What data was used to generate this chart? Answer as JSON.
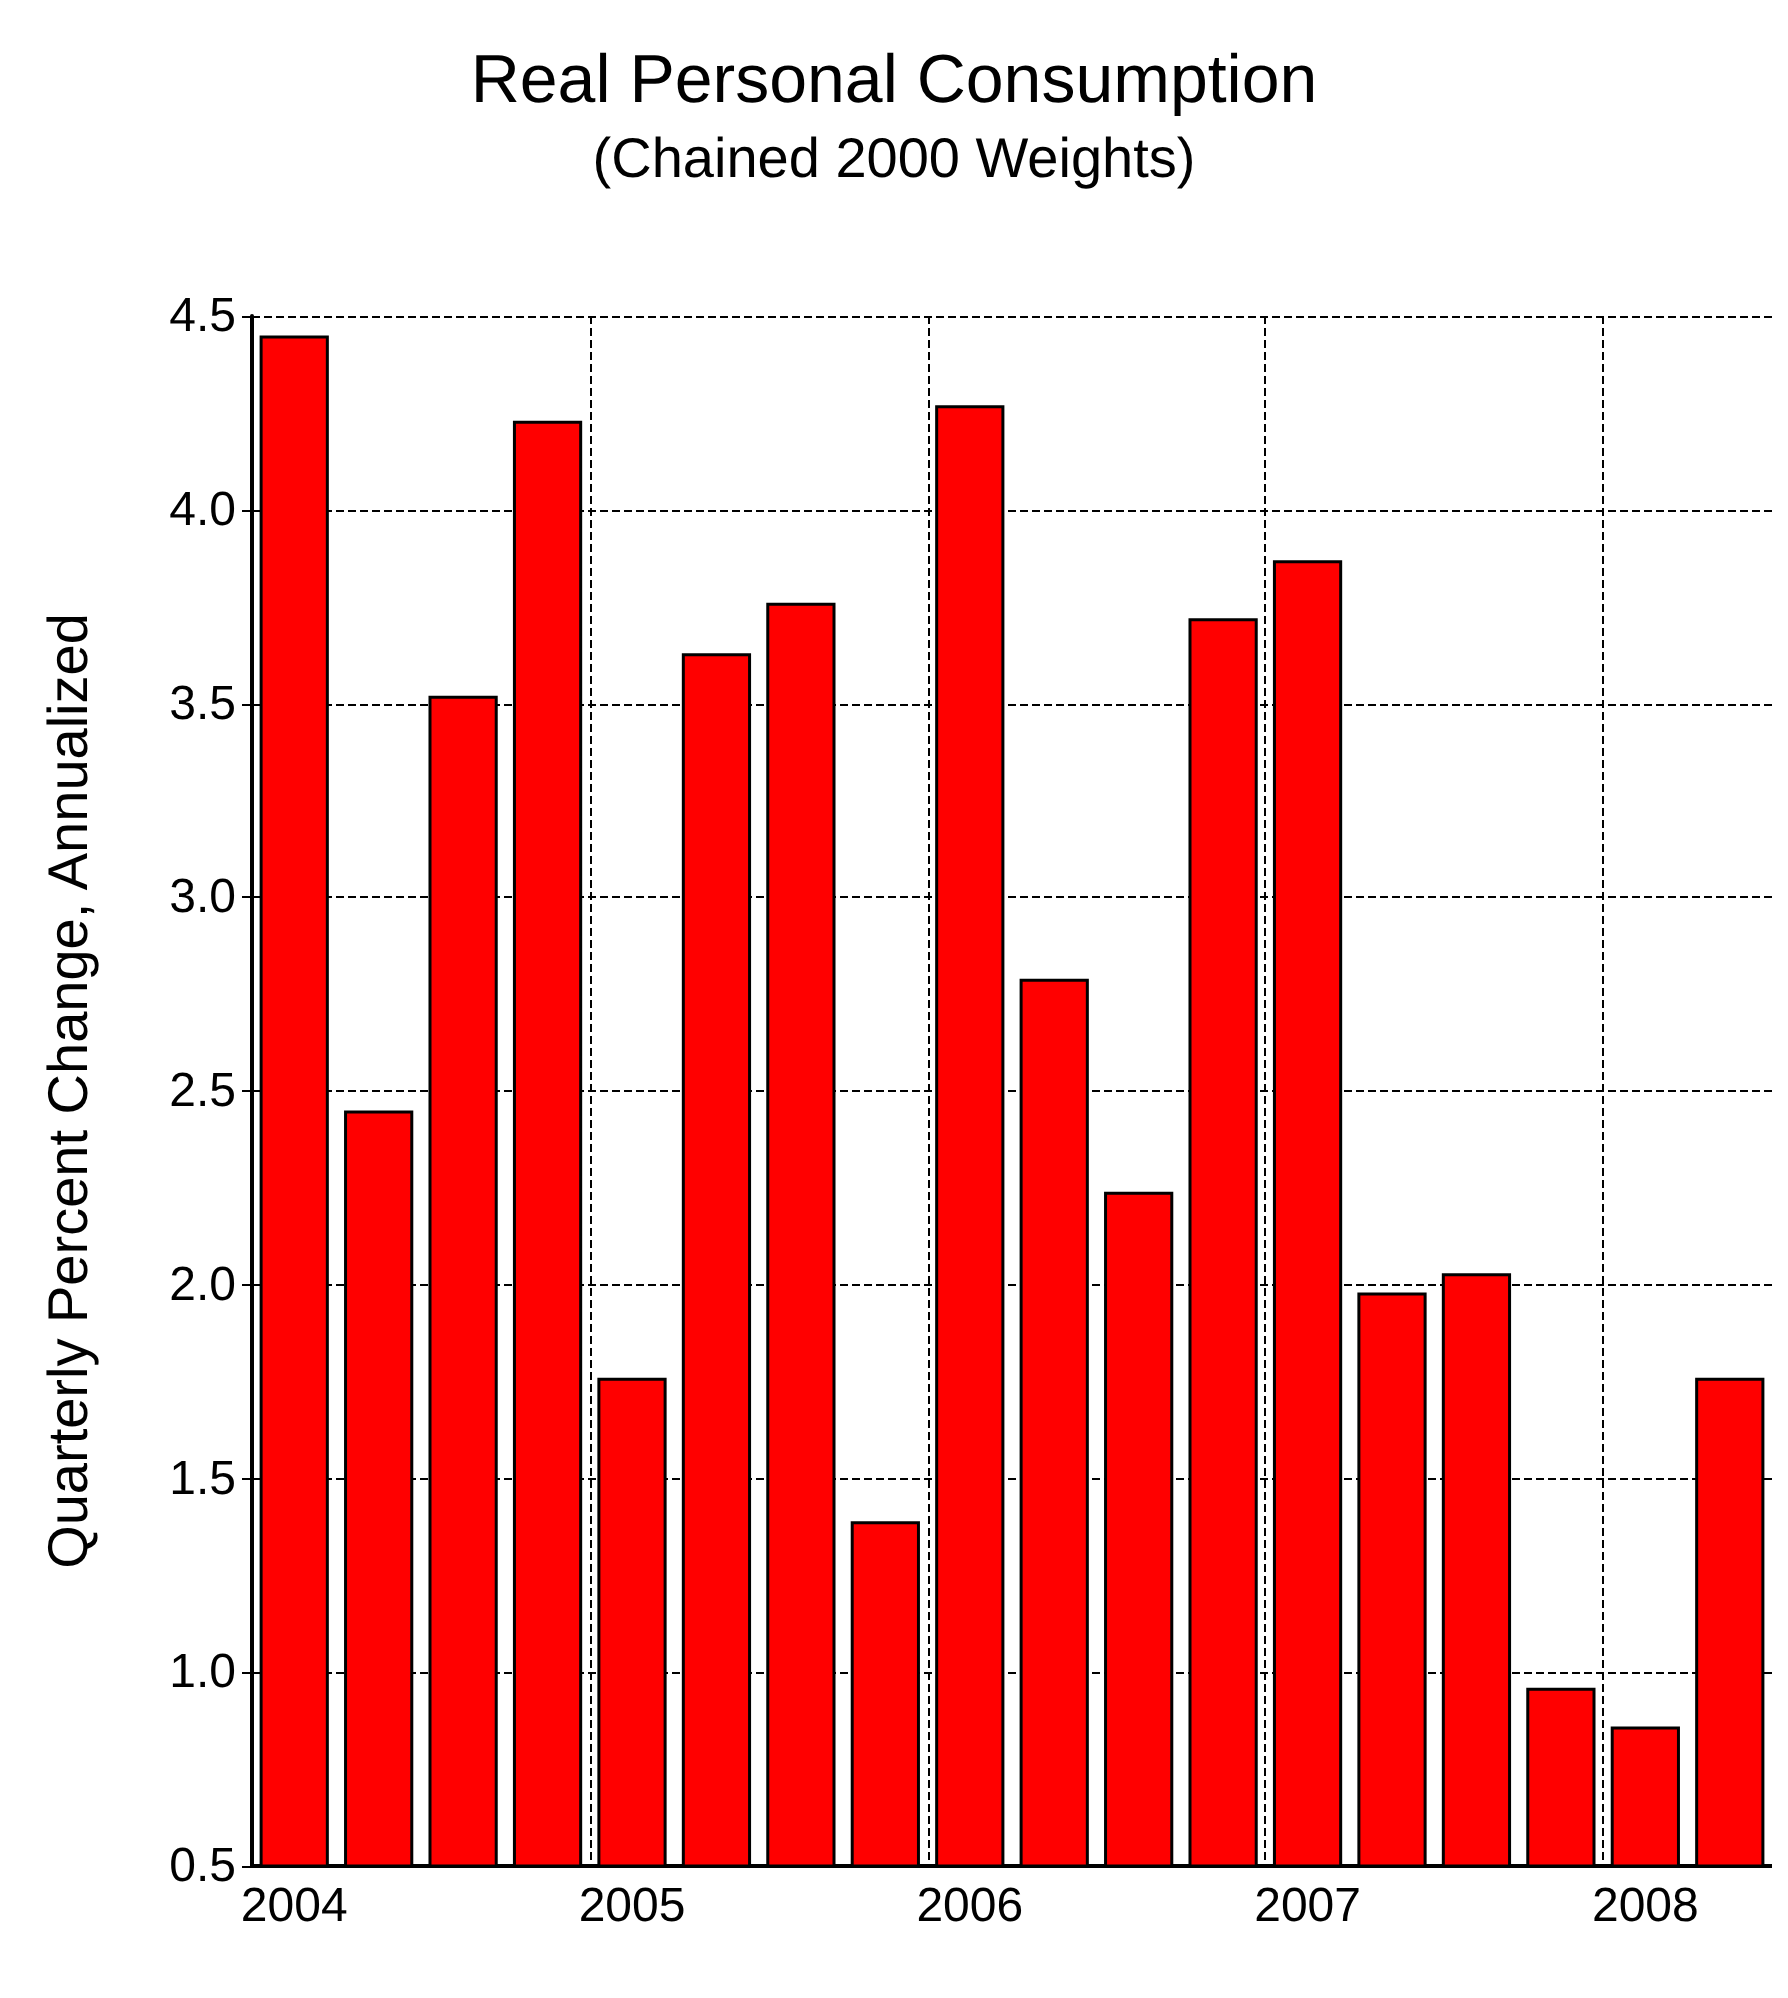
{
  "chart_data": {
    "type": "bar",
    "title": "Real Personal Consumption",
    "subtitle": "(Chained 2000 Weights)",
    "ylabel": "Quarterly Percent Change, Annualized",
    "categories": [
      "2004",
      null,
      null,
      null,
      "2005",
      null,
      null,
      null,
      "2006",
      null,
      null,
      null,
      "2007",
      null,
      null,
      null,
      "2008",
      null
    ],
    "values": [
      4.45,
      2.45,
      3.52,
      4.23,
      1.76,
      3.63,
      3.76,
      1.39,
      4.27,
      2.79,
      2.24,
      3.72,
      3.87,
      1.98,
      2.03,
      0.96,
      0.86,
      1.76
    ],
    "color": "#ff0000",
    "ylim": [
      0.5,
      4.5
    ],
    "yticks": [
      {
        "value": 0.5,
        "label": "0.5"
      },
      {
        "value": 1,
        "label": "1.0"
      },
      {
        "value": 1.5,
        "label": "1.5"
      },
      {
        "value": 2,
        "label": "2.0"
      },
      {
        "value": 2.5,
        "label": "2.5"
      },
      {
        "value": 3,
        "label": "3.0"
      },
      {
        "value": 3.5,
        "label": "3.5"
      },
      {
        "value": 4,
        "label": "4.0"
      },
      {
        "value": 4.5,
        "label": "4.5"
      }
    ],
    "grid": true
  }
}
